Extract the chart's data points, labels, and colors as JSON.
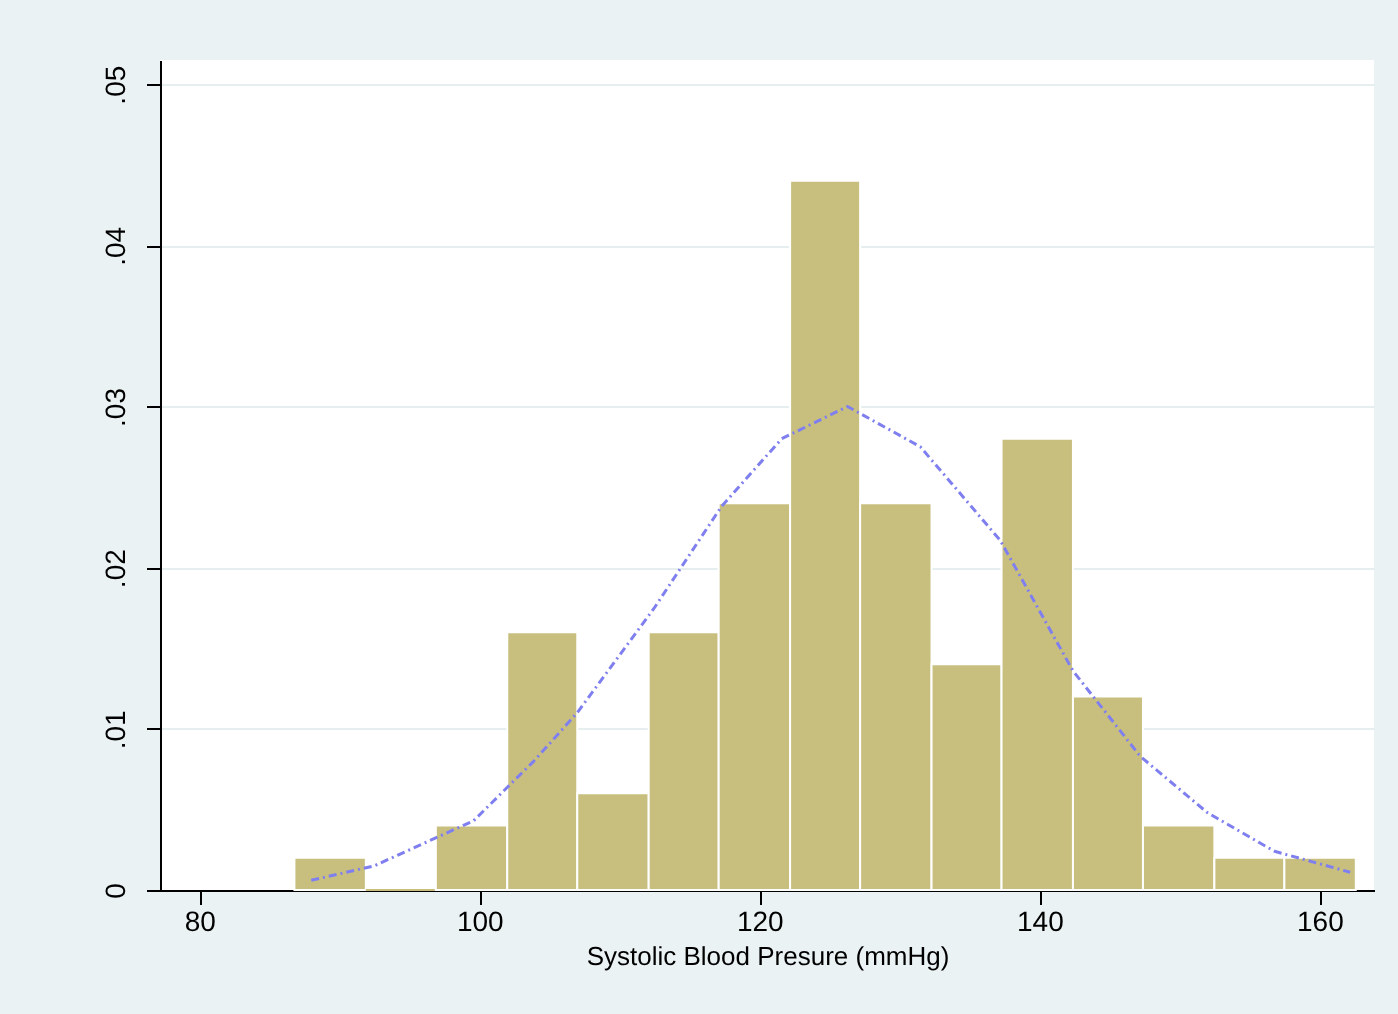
{
  "chart_data": {
    "type": "histogram",
    "xlabel": "Systolic Blood Presure (mmHg)",
    "bins": [
      86.8,
      91.9,
      96.9,
      102.0,
      107.0,
      112.1,
      117.1,
      122.2,
      127.2,
      132.3,
      137.3,
      142.4,
      147.4,
      152.5,
      157.5,
      162.6
    ],
    "values": [
      0.002,
      0,
      0.004,
      0.016,
      0.006,
      0.016,
      0.024,
      0.044,
      0.024,
      0.014,
      0.028,
      0.012,
      0.004,
      0.002,
      0.002
    ],
    "color": "#c8bf7f",
    "series": [
      {
        "type": "line",
        "color": "#7f7fef",
        "line_style": "dashed",
        "x": [
          88,
          92.5,
          99.6,
          103.9,
          107.0,
          112.5,
          117.3,
          121.6,
          126.3,
          131.5,
          137.2,
          142.4,
          147.2,
          152.0,
          156.8,
          162.2
        ],
        "values": [
          0.0006,
          0.0015,
          0.0043,
          0.008,
          0.011,
          0.0175,
          0.0238,
          0.028,
          0.03,
          0.0275,
          0.0217,
          0.0136,
          0.0083,
          0.0048,
          0.0024,
          0.0011
        ]
      }
    ],
    "xlim": [
      77.2,
      163.9
    ],
    "ylim": [
      0,
      0.0515
    ],
    "xticks": [
      80,
      100,
      120,
      140,
      160
    ],
    "yticks": [
      {
        "value": 0,
        "label": "0"
      },
      {
        "value": 0.01,
        "label": ".01"
      },
      {
        "value": 0.02,
        "label": ".02"
      },
      {
        "value": 0.03,
        "label": ".03"
      },
      {
        "value": 0.04,
        "label": ".04"
      },
      {
        "value": 0.05,
        "label": ".05"
      }
    ],
    "grid": "y"
  }
}
